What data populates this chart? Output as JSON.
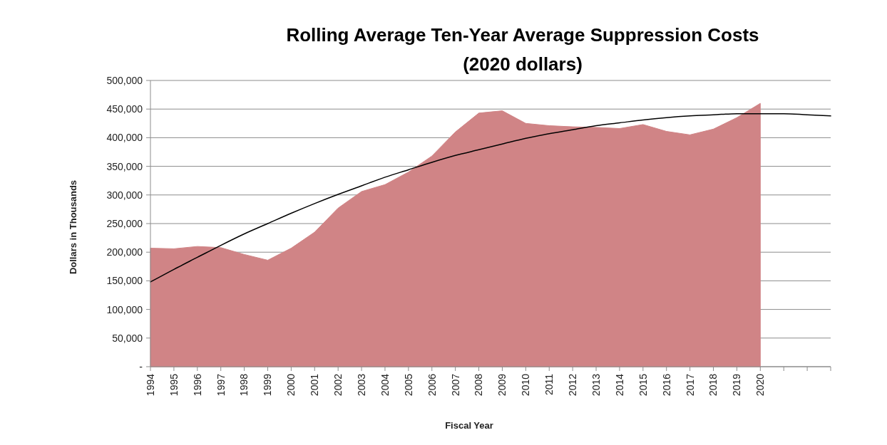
{
  "chart_data": {
    "type": "area",
    "title": "Rolling Average Ten-Year Average Suppression Costs",
    "subtitle": "(2020 dollars)",
    "xlabel": "Fiscal Year",
    "ylabel": "Dollars in Thousands",
    "categories": [
      "1994",
      "1995",
      "1996",
      "1997",
      "1998",
      "1999",
      "2000",
      "2001",
      "2002",
      "2003",
      "2004",
      "2005",
      "2006",
      "2007",
      "2008",
      "2009",
      "2010",
      "2011",
      "2012",
      "2013",
      "2014",
      "2015",
      "2016",
      "2017",
      "2018",
      "2019",
      "2020",
      null,
      null,
      null
    ],
    "series": [
      {
        "color": "#d08486",
        "values": [
          207000,
          206000,
          210000,
          208000,
          196000,
          186000,
          207000,
          235000,
          277000,
          306000,
          318000,
          340000,
          368000,
          410000,
          443000,
          447000,
          425000,
          421000,
          419000,
          418000,
          416000,
          423000,
          411000,
          405000,
          415000,
          435000,
          460000,
          null,
          null,
          null
        ]
      },
      {
        "type": "line",
        "color": "#000000",
        "values": [
          148000,
          170000,
          191000,
          212000,
          232000,
          250000,
          268000,
          285000,
          301000,
          316000,
          331000,
          344000,
          357000,
          369000,
          379000,
          389000,
          399000,
          407000,
          414000,
          421000,
          426000,
          431000,
          435000,
          438000,
          440000,
          442000,
          442000,
          442000,
          440000,
          438000
        ]
      }
    ],
    "ylim": [
      0,
      500000
    ],
    "yticks": [
      {
        "value": 0,
        "label": "-"
      },
      {
        "value": 50000,
        "label": "50,000"
      },
      {
        "value": 100000,
        "label": "100,000"
      },
      {
        "value": 150000,
        "label": "150,000"
      },
      {
        "value": 200000,
        "label": "200,000"
      },
      {
        "value": 250000,
        "label": "250,000"
      },
      {
        "value": 300000,
        "label": "300,000"
      },
      {
        "value": 350000,
        "label": "350,000"
      },
      {
        "value": 400000,
        "label": "400,000"
      },
      {
        "value": 450000,
        "label": "450,000"
      },
      {
        "value": 500000,
        "label": "500,000"
      }
    ],
    "grid": "y"
  }
}
